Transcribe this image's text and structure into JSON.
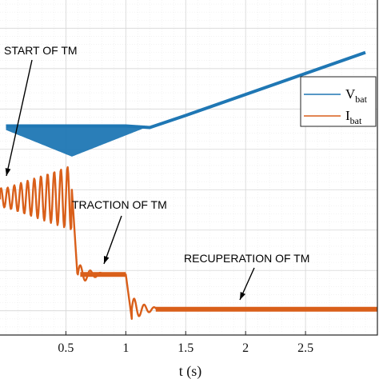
{
  "chart_data": {
    "type": "line",
    "xlabel": "t (s)",
    "xlim": [
      -0.05,
      3.1
    ],
    "ylim": [
      -2.3,
      1.85
    ],
    "xticks": [
      {
        "value": 0.5,
        "label": "0.5"
      },
      {
        "value": 1,
        "label": "1"
      },
      {
        "value": 1.5,
        "label": "1.5"
      },
      {
        "value": 2,
        "label": "2"
      },
      {
        "value": 2.5,
        "label": "2.5"
      }
    ],
    "grid": true,
    "legend_position": "right",
    "series": [
      {
        "name": "V",
        "subscript": "bat",
        "color": "#1f77b4",
        "x": [
          0,
          0.2,
          0.4,
          0.55,
          0.8,
          1.0,
          1.1,
          1.2,
          1.5,
          2.0,
          2.5,
          3.0
        ],
        "y": [
          0.29,
          0.29,
          0.29,
          0.29,
          0.29,
          0.29,
          0.28,
          0.27,
          0.42,
          0.68,
          0.94,
          1.2
        ]
      },
      {
        "name": "I",
        "subscript": "bat",
        "color": "#d95f1a",
        "x": [
          0,
          0.2,
          0.4,
          0.55,
          0.6,
          1.0,
          1.05,
          1.3,
          2.0,
          2.5,
          3.1
        ],
        "y": [
          -0.6,
          -0.6,
          -0.52,
          -0.48,
          -1.55,
          -1.55,
          -2.0,
          -1.98,
          -1.98,
          -1.98,
          -1.98
        ]
      }
    ],
    "annotations": [
      {
        "text": "START OF TM"
      },
      {
        "text": "TRACTION OF TM"
      },
      {
        "text": "RECUPERATION OF TM"
      }
    ]
  }
}
